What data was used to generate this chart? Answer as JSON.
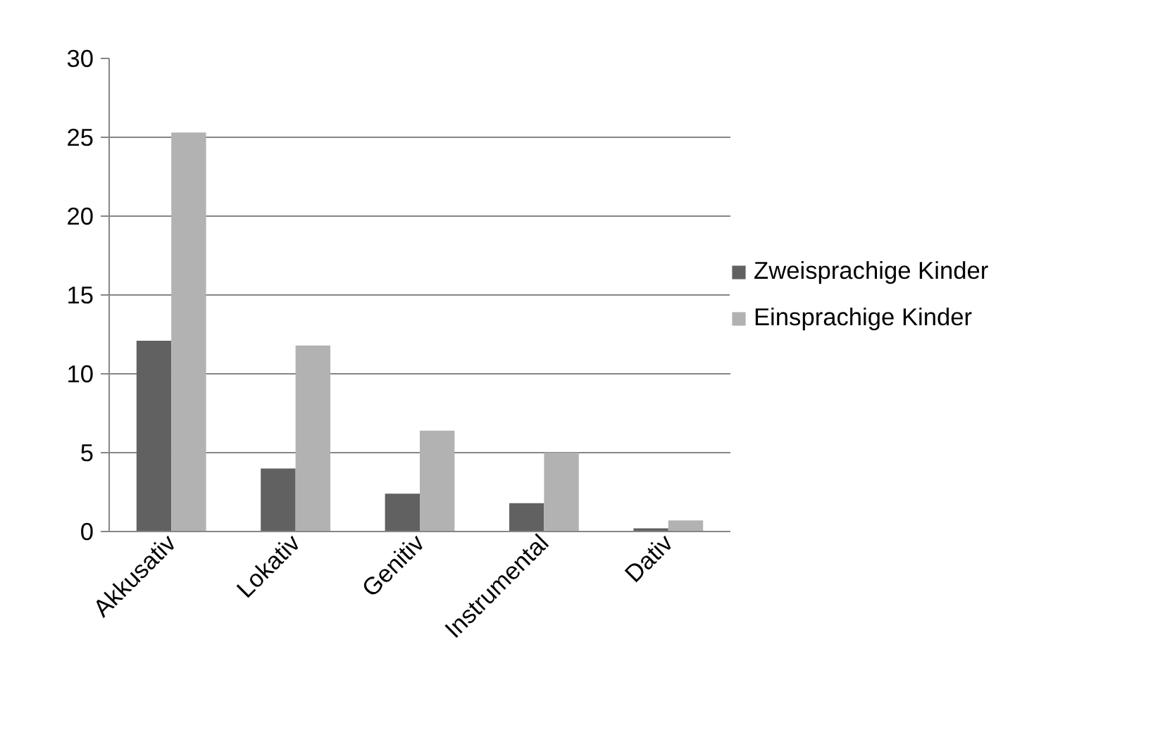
{
  "chart_data": {
    "type": "bar",
    "categories": [
      "Akkusativ",
      "Lokativ",
      "Genitiv",
      "Instrumental",
      "Dativ"
    ],
    "series": [
      {
        "name": "Zweisprachige Kinder",
        "color": "#616161",
        "values": [
          12.1,
          4.0,
          2.4,
          1.8,
          0.2
        ]
      },
      {
        "name": "Einsprachige Kinder",
        "color": "#b2b2b2",
        "values": [
          25.3,
          11.8,
          6.4,
          5.0,
          0.7
        ]
      }
    ],
    "ylim": [
      0,
      30
    ],
    "yticks": [
      0,
      5,
      10,
      15,
      20,
      25,
      30
    ],
    "grid": "y",
    "legend": "right"
  }
}
